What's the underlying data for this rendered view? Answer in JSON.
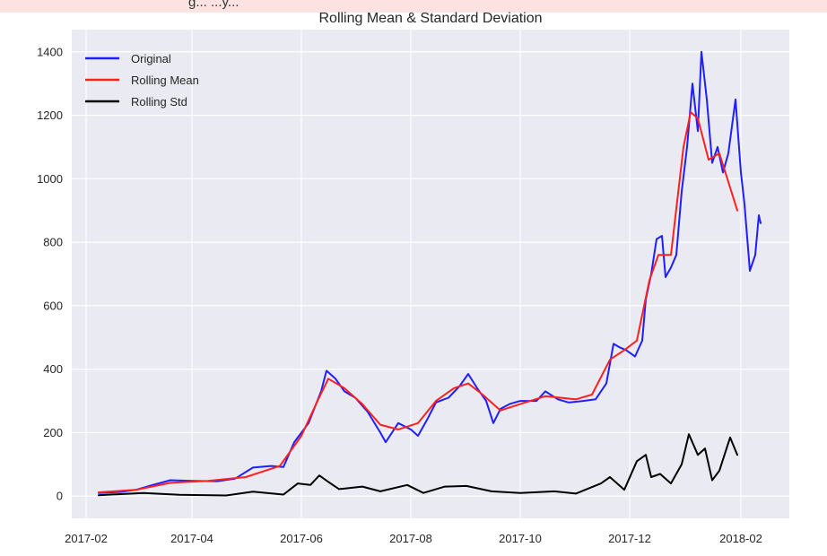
{
  "header_strip": {
    "text": "g... ...y..."
  },
  "chart_data": {
    "type": "line",
    "title": "Rolling Mean & Standard Deviation",
    "xlabel": "",
    "ylabel": "",
    "x_ticks": [
      "2017-02",
      "2017-04",
      "2017-06",
      "2017-08",
      "2017-10",
      "2017-12",
      "2018-02"
    ],
    "y_ticks": [
      0,
      200,
      400,
      600,
      800,
      1000,
      1200,
      1400
    ],
    "xlim": [
      "2017-01-24",
      "2018-02-28"
    ],
    "ylim": [
      -70,
      1470
    ],
    "grid": true,
    "legend_position": "top-left",
    "background": "#eaeaf2",
    "series": [
      {
        "name": "Original",
        "color": "#1f1fff",
        "points": [
          [
            "2017-02-08",
            10
          ],
          [
            "2017-02-20",
            13
          ],
          [
            "2017-03-01",
            20
          ],
          [
            "2017-03-10",
            35
          ],
          [
            "2017-03-20",
            50
          ],
          [
            "2017-04-01",
            48
          ],
          [
            "2017-04-15",
            47
          ],
          [
            "2017-04-25",
            55
          ],
          [
            "2017-05-05",
            90
          ],
          [
            "2017-05-15",
            95
          ],
          [
            "2017-05-22",
            92
          ],
          [
            "2017-05-28",
            170
          ],
          [
            "2017-06-05",
            230
          ],
          [
            "2017-06-12",
            330
          ],
          [
            "2017-06-15",
            395
          ],
          [
            "2017-06-20",
            370
          ],
          [
            "2017-06-25",
            330
          ],
          [
            "2017-07-01",
            310
          ],
          [
            "2017-07-08",
            265
          ],
          [
            "2017-07-15",
            200
          ],
          [
            "2017-07-18",
            170
          ],
          [
            "2017-07-25",
            230
          ],
          [
            "2017-08-01",
            210
          ],
          [
            "2017-08-05",
            190
          ],
          [
            "2017-08-10",
            240
          ],
          [
            "2017-08-15",
            295
          ],
          [
            "2017-08-22",
            310
          ],
          [
            "2017-08-28",
            345
          ],
          [
            "2017-09-02",
            385
          ],
          [
            "2017-09-07",
            340
          ],
          [
            "2017-09-12",
            300
          ],
          [
            "2017-09-16",
            230
          ],
          [
            "2017-09-20",
            275
          ],
          [
            "2017-09-25",
            290
          ],
          [
            "2017-10-01",
            300
          ],
          [
            "2017-10-10",
            300
          ],
          [
            "2017-10-15",
            330
          ],
          [
            "2017-10-22",
            305
          ],
          [
            "2017-10-28",
            295
          ],
          [
            "2017-11-05",
            300
          ],
          [
            "2017-11-12",
            305
          ],
          [
            "2017-11-18",
            355
          ],
          [
            "2017-11-22",
            480
          ],
          [
            "2017-11-25",
            470
          ],
          [
            "2017-11-29",
            460
          ],
          [
            "2017-12-04",
            440
          ],
          [
            "2017-12-08",
            490
          ],
          [
            "2017-12-10",
            620
          ],
          [
            "2017-12-13",
            700
          ],
          [
            "2017-12-16",
            810
          ],
          [
            "2017-12-19",
            820
          ],
          [
            "2017-12-21",
            690
          ],
          [
            "2017-12-24",
            720
          ],
          [
            "2017-12-27",
            760
          ],
          [
            "2017-12-30",
            960
          ],
          [
            "2018-01-02",
            1100
          ],
          [
            "2018-01-05",
            1300
          ],
          [
            "2018-01-08",
            1150
          ],
          [
            "2018-01-10",
            1400
          ],
          [
            "2018-01-13",
            1250
          ],
          [
            "2018-01-16",
            1050
          ],
          [
            "2018-01-19",
            1100
          ],
          [
            "2018-01-22",
            1020
          ],
          [
            "2018-01-25",
            1080
          ],
          [
            "2018-01-29",
            1250
          ],
          [
            "2018-02-01",
            1020
          ],
          [
            "2018-02-03",
            920
          ],
          [
            "2018-02-06",
            710
          ],
          [
            "2018-02-09",
            760
          ],
          [
            "2018-02-11",
            885
          ],
          [
            "2018-02-12",
            860
          ]
        ]
      },
      {
        "name": "Rolling Mean",
        "color": "#ff2020",
        "points": [
          [
            "2017-02-08",
            12
          ],
          [
            "2017-03-01",
            20
          ],
          [
            "2017-03-20",
            42
          ],
          [
            "2017-04-10",
            48
          ],
          [
            "2017-05-01",
            60
          ],
          [
            "2017-05-20",
            95
          ],
          [
            "2017-06-01",
            190
          ],
          [
            "2017-06-10",
            300
          ],
          [
            "2017-06-16",
            370
          ],
          [
            "2017-06-25",
            340
          ],
          [
            "2017-07-05",
            290
          ],
          [
            "2017-07-15",
            225
          ],
          [
            "2017-07-25",
            210
          ],
          [
            "2017-08-05",
            230
          ],
          [
            "2017-08-15",
            300
          ],
          [
            "2017-08-25",
            340
          ],
          [
            "2017-09-02",
            355
          ],
          [
            "2017-09-10",
            320
          ],
          [
            "2017-09-20",
            270
          ],
          [
            "2017-10-01",
            290
          ],
          [
            "2017-10-15",
            315
          ],
          [
            "2017-11-01",
            305
          ],
          [
            "2017-11-10",
            320
          ],
          [
            "2017-11-20",
            430
          ],
          [
            "2017-11-28",
            460
          ],
          [
            "2017-12-05",
            490
          ],
          [
            "2017-12-12",
            680
          ],
          [
            "2017-12-17",
            760
          ],
          [
            "2017-12-24",
            760
          ],
          [
            "2017-12-31",
            1100
          ],
          [
            "2018-01-04",
            1210
          ],
          [
            "2018-01-08",
            1190
          ],
          [
            "2018-01-14",
            1060
          ],
          [
            "2018-01-20",
            1080
          ],
          [
            "2018-01-30",
            900
          ]
        ]
      },
      {
        "name": "Rolling Std",
        "color": "#000000",
        "points": [
          [
            "2017-02-08",
            3
          ],
          [
            "2017-03-05",
            10
          ],
          [
            "2017-03-25",
            4
          ],
          [
            "2017-04-20",
            2
          ],
          [
            "2017-05-05",
            14
          ],
          [
            "2017-05-22",
            5
          ],
          [
            "2017-05-30",
            40
          ],
          [
            "2017-06-06",
            35
          ],
          [
            "2017-06-11",
            65
          ],
          [
            "2017-06-16",
            45
          ],
          [
            "2017-06-22",
            22
          ],
          [
            "2017-07-05",
            30
          ],
          [
            "2017-07-15",
            15
          ],
          [
            "2017-07-30",
            35
          ],
          [
            "2017-08-08",
            10
          ],
          [
            "2017-08-20",
            30
          ],
          [
            "2017-09-01",
            32
          ],
          [
            "2017-09-15",
            15
          ],
          [
            "2017-10-01",
            10
          ],
          [
            "2017-10-20",
            15
          ],
          [
            "2017-11-01",
            8
          ],
          [
            "2017-11-15",
            40
          ],
          [
            "2017-11-20",
            60
          ],
          [
            "2017-11-28",
            20
          ],
          [
            "2017-12-05",
            110
          ],
          [
            "2017-12-10",
            130
          ],
          [
            "2017-12-13",
            60
          ],
          [
            "2017-12-18",
            70
          ],
          [
            "2017-12-24",
            40
          ],
          [
            "2017-12-30",
            100
          ],
          [
            "2018-01-03",
            195
          ],
          [
            "2018-01-08",
            130
          ],
          [
            "2018-01-12",
            150
          ],
          [
            "2018-01-16",
            50
          ],
          [
            "2018-01-20",
            80
          ],
          [
            "2018-01-26",
            185
          ],
          [
            "2018-01-30",
            130
          ]
        ]
      }
    ]
  }
}
